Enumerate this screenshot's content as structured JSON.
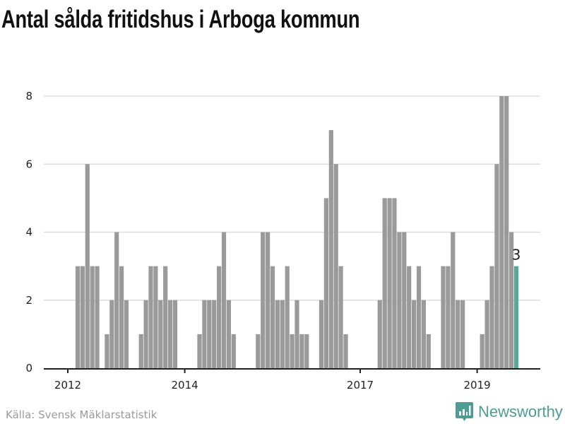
{
  "title": "Antal sålda fritidshus i Arboga kommun",
  "source": "Källa: Svensk Mäklarstatistik",
  "brand": "Newsworthy",
  "colors": {
    "bar": "#9a9a9a",
    "highlight": "#5aa79c",
    "grid": "#dddddd",
    "axis": "#222222"
  },
  "chart_data": {
    "type": "bar",
    "title": "Antal sålda fritidshus i Arboga kommun",
    "xlabel": "",
    "ylabel": "",
    "start_month": "2012-01",
    "end_month": "2019-08",
    "frequency": "monthly",
    "values": [
      0,
      3,
      3,
      6,
      3,
      3,
      0,
      1,
      2,
      4,
      3,
      2,
      0,
      0,
      1,
      2,
      3,
      3,
      2,
      3,
      2,
      2,
      0,
      0,
      0,
      0,
      1,
      2,
      2,
      2,
      3,
      4,
      2,
      1,
      0,
      0,
      0,
      0,
      1,
      4,
      4,
      3,
      2,
      2,
      3,
      1,
      2,
      1,
      1,
      0,
      0,
      2,
      5,
      7,
      6,
      3,
      1,
      0,
      0,
      0,
      0,
      0,
      0,
      2,
      5,
      5,
      5,
      4,
      4,
      3,
      2,
      3,
      2,
      1,
      0,
      0,
      3,
      3,
      4,
      2,
      2,
      0,
      0,
      0,
      1,
      2,
      3,
      6,
      8,
      8,
      4,
      3
    ],
    "ylim": [
      0,
      8
    ],
    "yticks": [
      "0",
      "2",
      "4",
      "6",
      "8"
    ],
    "xticks": [
      {
        "year": 2012,
        "label": "2012"
      },
      {
        "year": 2014,
        "label": "2014"
      },
      {
        "year": 2017,
        "label": "2017"
      },
      {
        "year": 2019,
        "label": "2019"
      }
    ],
    "highlight_last": true,
    "last_value_label": "3",
    "grid": true
  }
}
